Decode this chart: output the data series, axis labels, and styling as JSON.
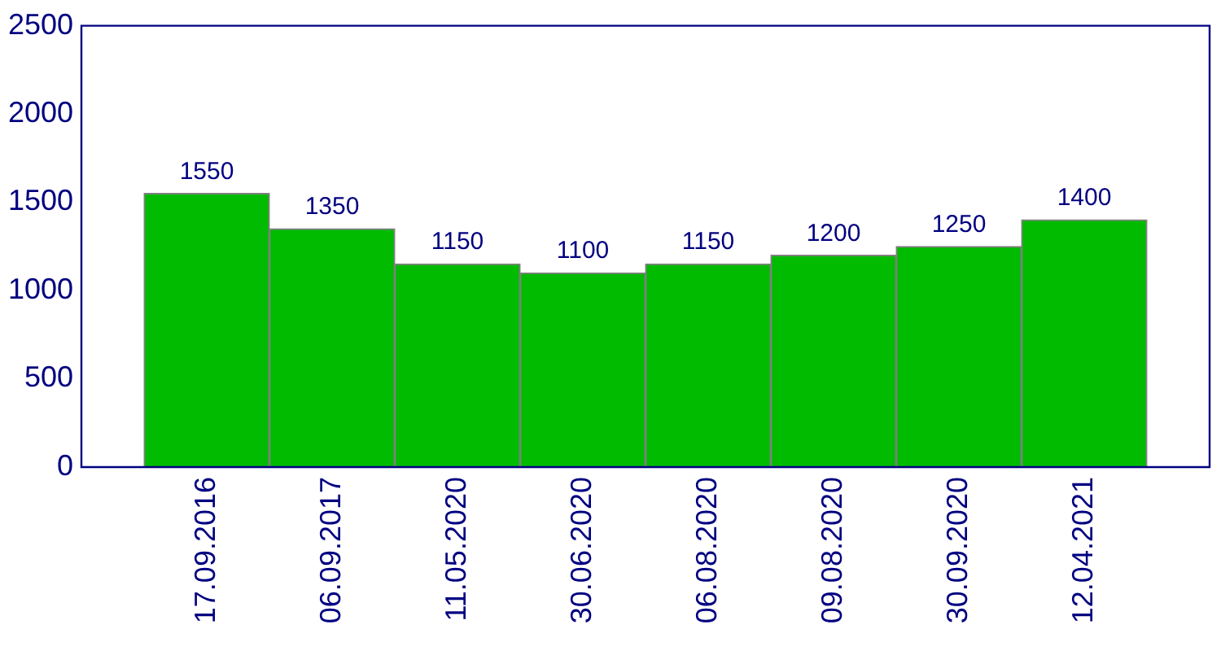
{
  "chart_data": {
    "type": "bar",
    "categories": [
      "17.09.2016",
      "06.09.2017",
      "11.05.2020",
      "30.06.2020",
      "06.08.2020",
      "09.08.2020",
      "30.09.2020",
      "12.04.2021"
    ],
    "values": [
      1550,
      1350,
      1150,
      1100,
      1150,
      1200,
      1250,
      1400
    ],
    "color": "#00bb00",
    "ylim": [
      0,
      2500
    ],
    "yticks": [
      0,
      500,
      1000,
      1500,
      2000,
      2500
    ],
    "grid": false,
    "data_labels": true
  }
}
